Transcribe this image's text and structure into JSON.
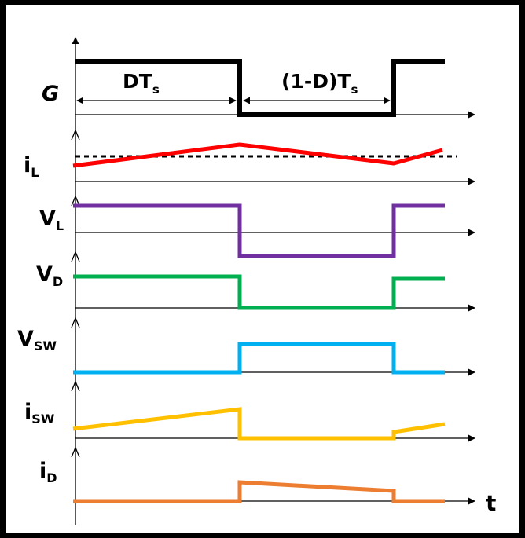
{
  "labels": {
    "g": "G",
    "dts_main": "DT",
    "dts_sub": "s",
    "offtime_main": "(1-D)T",
    "offtime_sub": "s",
    "il_main": "i",
    "il_sub": "L",
    "vl_main": "V",
    "vl_sub": "L",
    "vd_main": "V",
    "vd_sub": "D",
    "vsw_main": "V",
    "vsw_sub": "SW",
    "isw_main": "i",
    "isw_sub": "SW",
    "id_main": "i",
    "id_sub": "D",
    "time_axis": "t"
  },
  "colors": {
    "gate": "#000000",
    "inductor_current": "#ff0000",
    "inductor_voltage": "#7030a0",
    "diode_voltage": "#00b050",
    "switch_voltage": "#00b0f0",
    "switch_current": "#ffc000",
    "diode_current": "#ed7d31",
    "axis": "#000000"
  }
}
